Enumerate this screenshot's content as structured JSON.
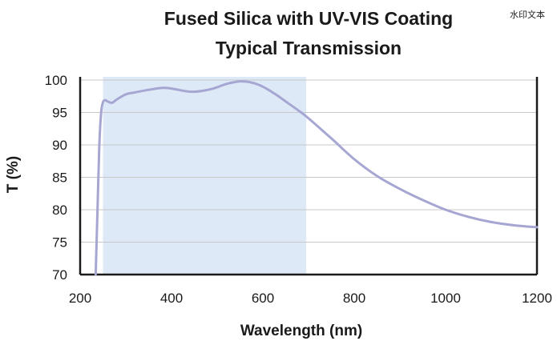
{
  "watermark": "水印文本",
  "chart_data": {
    "type": "line",
    "title_line1": "Fused Silica with UV-VIS Coating",
    "title_line2": "Typical Transmission",
    "xlabel": "Wavelength (nm)",
    "ylabel": "T (%)",
    "xlim": [
      200,
      1200
    ],
    "ylim": [
      70,
      100.5
    ],
    "xticks": [
      "200",
      "400",
      "600",
      "800",
      "1000",
      "1200"
    ],
    "yticks": [
      "70",
      "75",
      "80",
      "85",
      "90",
      "95",
      "100"
    ],
    "highlight_band": {
      "x_start": 250,
      "x_end": 695,
      "color": "#dde9f6"
    },
    "grid": true,
    "series": [
      {
        "color": "#a6a6d3",
        "x": [
          234,
          238,
          242,
          246,
          250,
          255,
          260,
          270,
          280,
          300,
          320,
          350,
          380,
          400,
          430,
          450,
          480,
          500,
          520,
          550,
          570,
          590,
          610,
          630,
          650,
          680,
          700,
          750,
          800,
          850,
          900,
          950,
          1000,
          1050,
          1100,
          1150,
          1200
        ],
        "y": [
          70,
          80,
          90,
          95,
          96.6,
          96.9,
          96.7,
          96.5,
          97.0,
          97.8,
          98.1,
          98.5,
          98.8,
          98.7,
          98.3,
          98.2,
          98.5,
          98.9,
          99.4,
          99.8,
          99.7,
          99.3,
          98.6,
          97.7,
          96.7,
          95.2,
          94.1,
          91.0,
          87.8,
          85.2,
          83.2,
          81.5,
          80.0,
          78.9,
          78.1,
          77.6,
          77.3
        ]
      }
    ]
  }
}
